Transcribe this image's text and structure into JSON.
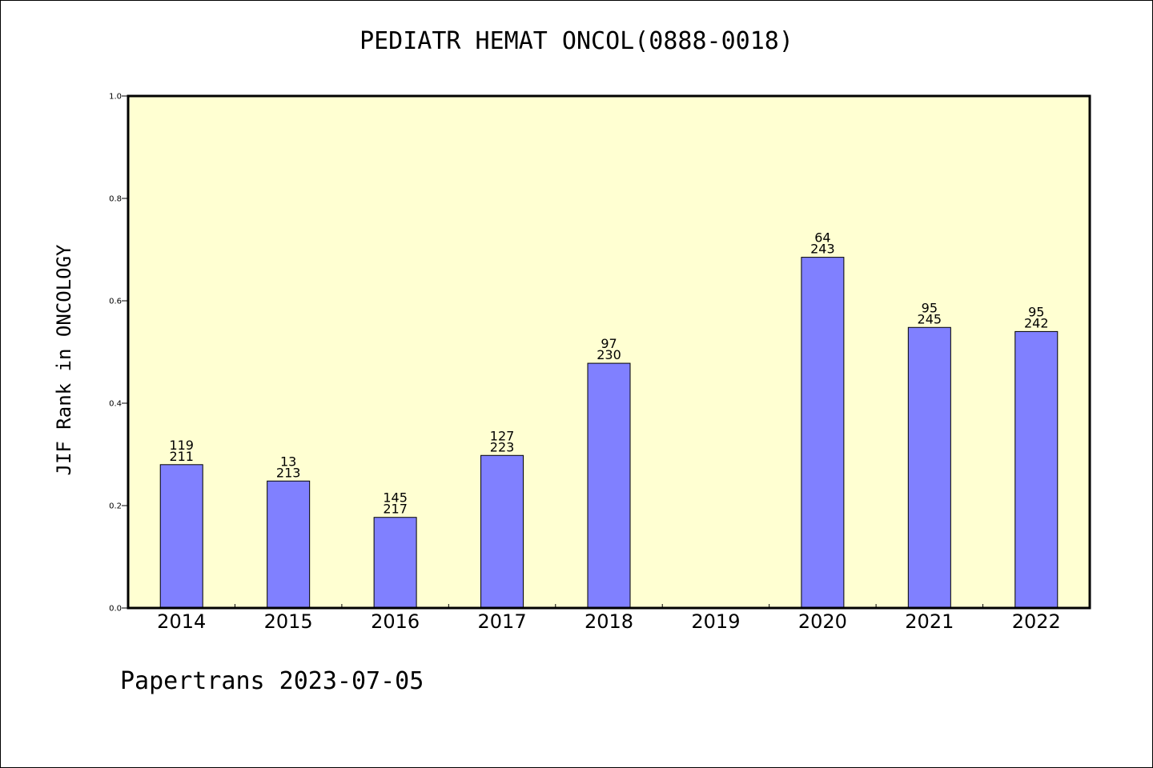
{
  "footer": "Papertrans 2023-07-05",
  "colors": {
    "plot_background": "#ffffd2",
    "bar": "#8080ff",
    "bar_edge": "#000000"
  },
  "chart_data": {
    "type": "bar",
    "title": "PEDIATR HEMAT ONCOL(0888-0018)",
    "xlabel": "",
    "ylabel": "JIF Rank in ONCOLOGY",
    "ylim": [
      0,
      1.0
    ],
    "yticks": [
      "0.0",
      "0.2",
      "0.4",
      "0.6",
      "0.8",
      "1.0"
    ],
    "grid": false,
    "categories": [
      "2014",
      "2015",
      "2016",
      "2017",
      "2018",
      "2019",
      "2020",
      "2021",
      "2022"
    ],
    "values": [
      0.28,
      0.248,
      0.177,
      0.298,
      0.478,
      null,
      0.685,
      0.548,
      0.54
    ],
    "annotations": [
      {
        "rank": "119",
        "total": "211"
      },
      {
        "rank": "13",
        "total": "213"
      },
      {
        "rank": "145",
        "total": "217"
      },
      {
        "rank": "127",
        "total": "223"
      },
      {
        "rank": "97",
        "total": "230"
      },
      null,
      {
        "rank": "64",
        "total": "243"
      },
      {
        "rank": "95",
        "total": "245"
      },
      {
        "rank": "95",
        "total": "242"
      }
    ]
  }
}
